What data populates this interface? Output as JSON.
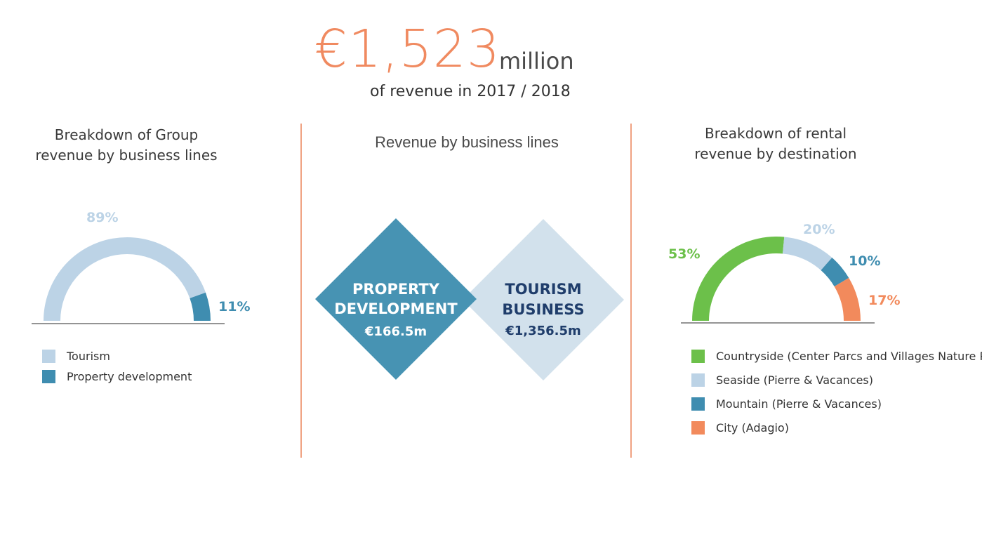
{
  "headline": {
    "value": "€1,523",
    "unit": "million",
    "caption": "of revenue in 2017 / 2018"
  },
  "left_chart": {
    "title_line1": "Breakdown of Group",
    "title_line2": "revenue by business lines"
  },
  "middle": {
    "title": "Revenue by business lines",
    "property": {
      "line1": "PROPERTY",
      "line2": "DEVELOPMENT",
      "value": "€166.5m",
      "color": "#4793b3",
      "text_color": "#ffffff"
    },
    "tourism": {
      "line1": "TOURISM",
      "line2": "BUSINESS",
      "value": "€1,356.5m",
      "color": "#d2e1ec",
      "text_color": "#1f3d6b"
    }
  },
  "right_chart": {
    "title_line1": "Breakdown of rental",
    "title_line2": "revenue by destination"
  },
  "chart_data": [
    {
      "type": "pie",
      "style": "half-donut",
      "title": "Breakdown of Group revenue by business lines",
      "series": [
        {
          "name": "Tourism",
          "value": 89,
          "label": "89%",
          "color": "#bcd3e6"
        },
        {
          "name": "Property development",
          "value": 11,
          "label": "11%",
          "color": "#3f8db0"
        }
      ],
      "legend_position": "bottom"
    },
    {
      "type": "pie",
      "style": "half-donut",
      "title": "Breakdown of rental revenue by destination",
      "series": [
        {
          "name": "Countryside (Center Parcs and Villages Nature Paris)",
          "value": 53,
          "label": "53%",
          "color": "#6cc04a"
        },
        {
          "name": "Seaside (Pierre & Vacances)",
          "value": 20,
          "label": "20%",
          "color": "#bcd3e6"
        },
        {
          "name": "Mountain (Pierre & Vacances)",
          "value": 10,
          "label": "10%",
          "color": "#3f8db0"
        },
        {
          "name": "City (Adagio)",
          "value": 17,
          "label": "17%",
          "color": "#f28a5c"
        }
      ],
      "legend_position": "bottom"
    }
  ]
}
